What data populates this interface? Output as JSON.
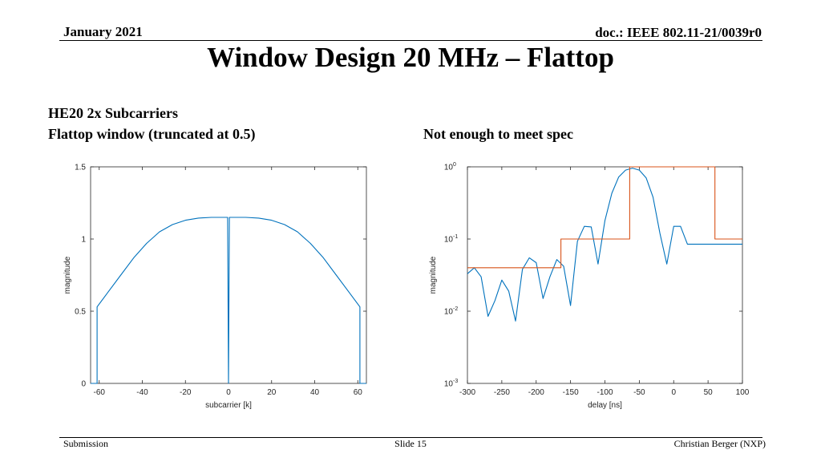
{
  "header": {
    "date": "January 2021",
    "doc": "doc.: IEEE 802.11-21/0039r0"
  },
  "title": "Window Design 20 MHz – Flattop",
  "subtitles": {
    "line1": "HE20 2x Subcarriers",
    "line2": "Flattop window (truncated at 0.5)",
    "right": "Not enough to meet spec"
  },
  "footer": {
    "left": "Submission",
    "center": "Slide 15",
    "right": "Christian Berger (NXP)"
  },
  "colors": {
    "series": "#0072BD",
    "spec": "#D95319",
    "axis": "#262626"
  },
  "chart_data": [
    {
      "type": "line",
      "xlabel": "subcarrier [k]",
      "ylabel": "magnitude",
      "xlim": [
        -64,
        64
      ],
      "ylim": [
        0,
        1.5
      ],
      "xticks": [
        -60,
        -40,
        -20,
        0,
        20,
        40,
        60
      ],
      "yticks": [
        0,
        0.5,
        1,
        1.5
      ],
      "ytick_labels": [
        "0",
        "0.5",
        "1",
        "1.5"
      ],
      "grid": false,
      "series": [
        {
          "x": [
            -64,
            -62,
            -61,
            -61,
            -56,
            -50,
            -44,
            -38,
            -32,
            -26,
            -20,
            -14,
            -8,
            -4,
            -1,
            -0.4,
            0,
            0.4,
            1,
            4,
            8,
            14,
            20,
            26,
            32,
            38,
            44,
            50,
            56,
            61,
            61,
            62,
            64
          ],
          "y": [
            0,
            0,
            0,
            0.53,
            0.63,
            0.75,
            0.87,
            0.97,
            1.05,
            1.1,
            1.13,
            1.145,
            1.15,
            1.15,
            1.15,
            1.15,
            0,
            1.15,
            1.15,
            1.15,
            1.15,
            1.145,
            1.13,
            1.1,
            1.05,
            0.97,
            0.87,
            0.75,
            0.63,
            0.53,
            0,
            0,
            0
          ]
        }
      ]
    },
    {
      "type": "line",
      "xlabel": "delay [ns]",
      "ylabel": "magnitude",
      "xlim": [
        -300,
        100
      ],
      "ylim": [
        0.001,
        1
      ],
      "yscale": "log",
      "xticks": [
        -300,
        -250,
        -200,
        -150,
        -100,
        -50,
        0,
        50,
        100
      ],
      "yticks": [
        0.001,
        0.01,
        0.1,
        1
      ],
      "ytick_labels": [
        {
          "base": "10",
          "exp": "-3"
        },
        {
          "base": "10",
          "exp": "-2"
        },
        {
          "base": "10",
          "exp": "-1"
        },
        {
          "base": "10",
          "exp": "0"
        }
      ],
      "grid": false,
      "series": [
        {
          "x": [
            -300,
            -290,
            -280,
            -270,
            -260,
            -250,
            -240,
            -230,
            -220,
            -210,
            -200,
            -190,
            -180,
            -170,
            -160,
            -150,
            -140,
            -130,
            -120,
            -110,
            -100,
            -90,
            -80,
            -70,
            -60,
            -50,
            -40,
            -30,
            -20,
            -10,
            0,
            10,
            20,
            30,
            40,
            50,
            60,
            70,
            80,
            90,
            100
          ],
          "y": [
            0.033,
            0.04,
            0.03,
            0.0085,
            0.014,
            0.027,
            0.019,
            0.0073,
            0.038,
            0.055,
            0.047,
            0.015,
            0.03,
            0.052,
            0.042,
            0.012,
            0.093,
            0.15,
            0.147,
            0.045,
            0.18,
            0.43,
            0.72,
            0.9,
            0.96,
            0.9,
            0.7,
            0.38,
            0.12,
            0.045,
            0.15,
            0.15,
            0.085,
            0.085,
            0.085,
            0.085,
            0.085,
            0.085,
            0.085,
            0.085,
            0.085
          ]
        },
        {
          "x": [
            -300,
            -164,
            -164,
            -64,
            -64,
            60,
            60,
            100
          ],
          "y": [
            0.04,
            0.04,
            0.1,
            0.1,
            1,
            1,
            0.1,
            0.1
          ]
        }
      ]
    }
  ]
}
